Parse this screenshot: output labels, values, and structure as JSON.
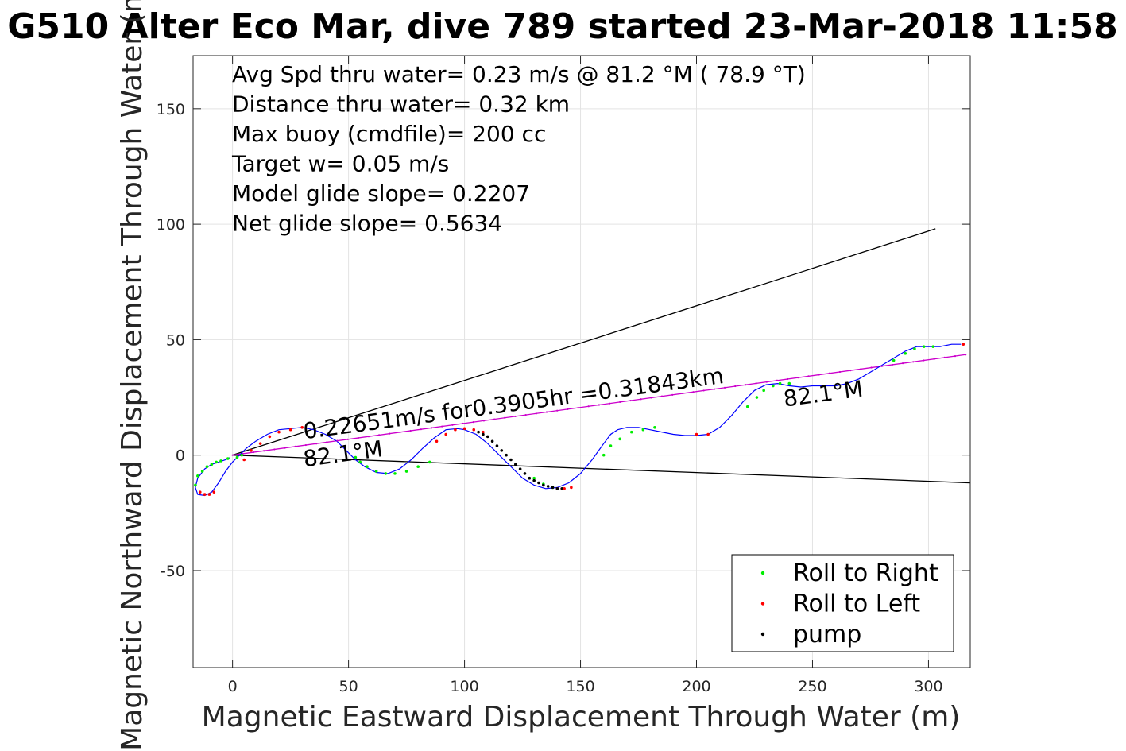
{
  "chart_data": {
    "type": "line",
    "title": "G510 Alter Eco Mar, dive 789 started 23-Mar-2018 11:58",
    "xlabel": "Magnetic Eastward Displacement Through Water (m)",
    "ylabel": "Magnetic Northward Displacement Through Water (m)",
    "xlim": [
      -17,
      318
    ],
    "ylim": [
      -92,
      173
    ],
    "xticks": [
      0,
      50,
      100,
      150,
      200,
      250,
      300
    ],
    "yticks": [
      -50,
      0,
      50,
      100,
      150
    ],
    "xtick_labels": [
      "0",
      "50",
      "100",
      "150",
      "200",
      "250",
      "300"
    ],
    "ytick_labels": [
      "-50",
      "0",
      "50",
      "100",
      "150"
    ],
    "grid": true,
    "legend_position": "bottom-right",
    "info_lines": [
      "Avg Spd thru water=  0.23 m/s @  81.2 °M ( 78.9 °T)",
      "Distance thru water=  0.32 km",
      "Max buoy (cmdfile)= 200 cc",
      "Target w= 0.05 m/s",
      "Model glide slope= 0.2207",
      "Net glide slope= 0.5634"
    ],
    "annotations": [
      {
        "text": "0.22651m/s for0.3905hr =0.31843km",
        "x": 31,
        "y": 7,
        "rotation_deg": -7.6
      },
      {
        "text": "82.1°M",
        "x": 31,
        "y": -5,
        "rotation_deg": -7.6
      },
      {
        "text": "82.1°M",
        "x": 238,
        "y": 21,
        "rotation_deg": -7.6
      }
    ],
    "reference_lines": [
      {
        "name": "upper-bound",
        "x": [
          0,
          303
        ],
        "y": [
          0,
          98
        ],
        "color": "#000000"
      },
      {
        "name": "lower-bound",
        "x": [
          0,
          318
        ],
        "y": [
          0,
          -12
        ],
        "color": "#000000"
      },
      {
        "name": "net-track",
        "x": [
          0,
          316
        ],
        "y": [
          0,
          43.5
        ],
        "color": "#cc00cc"
      }
    ],
    "track": {
      "color": "#0000ff",
      "x": [
        -1,
        -3,
        -6,
        -9,
        -12,
        -15,
        -16,
        -15,
        -12,
        -9,
        -6,
        -3,
        0,
        3,
        6,
        10,
        15,
        20,
        25,
        30,
        35,
        40,
        45,
        50,
        53,
        57,
        62,
        67,
        72,
        77,
        82,
        87,
        92,
        97,
        100,
        105,
        110,
        115,
        120,
        125,
        130,
        135,
        140,
        145,
        150,
        155,
        160,
        163,
        166,
        170,
        175,
        180,
        185,
        190,
        195,
        200,
        205,
        210,
        215,
        220,
        225,
        230,
        235,
        240,
        245,
        250,
        255,
        260,
        265,
        270,
        275,
        280,
        285,
        290,
        295,
        300,
        305,
        310,
        314
      ],
      "y": [
        -1,
        -2,
        -3,
        -4,
        -6,
        -10,
        -14,
        -17,
        -17.5,
        -16,
        -12,
        -7,
        -3,
        0,
        3,
        6,
        9,
        11,
        11.5,
        12,
        11,
        9,
        6,
        1,
        -2,
        -5,
        -7.5,
        -8,
        -6,
        -2,
        3,
        7.5,
        11,
        11.5,
        11,
        9,
        5,
        0,
        -5,
        -10,
        -13,
        -14.5,
        -14,
        -12,
        -8,
        -2,
        5,
        9,
        11,
        12,
        12,
        11,
        10,
        9,
        8.5,
        8.5,
        9,
        12,
        17,
        23,
        28,
        30.5,
        31,
        30,
        29.5,
        30,
        30,
        30,
        31,
        33,
        36,
        39,
        42,
        45,
        47,
        47,
        47,
        48,
        48
      ]
    },
    "series": [
      {
        "name": "Roll to Right",
        "color": "#00ee00",
        "x": [
          -16,
          -15,
          -13,
          -11,
          -9,
          -7,
          -5,
          -2,
          2,
          4,
          53,
          55,
          58,
          62,
          66,
          70,
          75,
          80,
          85,
          130,
          134,
          138,
          160,
          163,
          167,
          172,
          177,
          182,
          222,
          226,
          229,
          233,
          236,
          240,
          285,
          290,
          294,
          298,
          302
        ],
        "y": [
          -13,
          -9,
          -7,
          -5,
          -4,
          -3,
          -2.5,
          -1.5,
          -1,
          0,
          -1,
          -3,
          -5,
          -7,
          -8,
          -8,
          -7,
          -5,
          -3,
          -10,
          -12.5,
          -14,
          0,
          4,
          7,
          10,
          11,
          12,
          21,
          25,
          28,
          30,
          31,
          31,
          41,
          44,
          46,
          47,
          47
        ]
      },
      {
        "name": "Roll to Left",
        "color": "#ff0000",
        "x": [
          -14,
          -12,
          -10,
          -8,
          5,
          8,
          12,
          16,
          20,
          25,
          30,
          88,
          92,
          96,
          100,
          104,
          108,
          140,
          143,
          146,
          200,
          205,
          315
        ],
        "y": [
          -16,
          -17,
          -17,
          -16,
          -2,
          2,
          5,
          8,
          10,
          11,
          12,
          6,
          9,
          11,
          11.5,
          11,
          10,
          -14.5,
          -14.5,
          -14,
          9,
          9,
          48
        ]
      },
      {
        "name": "pump",
        "color": "#000000",
        "x": [
          106,
          108,
          110,
          112,
          114,
          116,
          118,
          120,
          122,
          124,
          126,
          128,
          130,
          132,
          134,
          136,
          138,
          140,
          142
        ],
        "y": [
          10,
          9,
          8,
          6,
          4,
          2,
          0,
          -2,
          -4,
          -6,
          -8,
          -10,
          -11,
          -12,
          -13,
          -13.5,
          -14,
          -14.5,
          -14.5
        ]
      }
    ]
  }
}
